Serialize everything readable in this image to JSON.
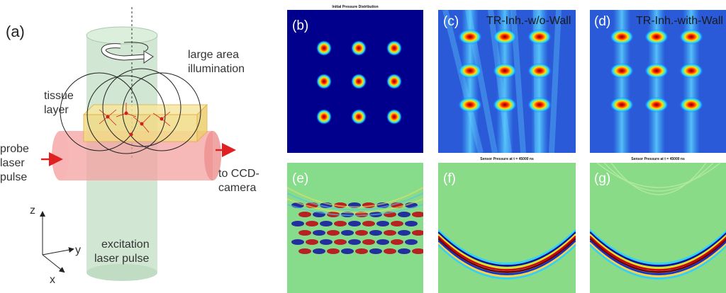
{
  "panel_a": {
    "label": "(a)",
    "rotation_label": [
      "large area",
      "illumination"
    ],
    "tissue_label": [
      "tissue",
      "layer"
    ],
    "probe_label": [
      "probe",
      "laser",
      "pulse"
    ],
    "camera_label": [
      "to CCD-",
      "camera"
    ],
    "excitation_label": [
      "excitation",
      "laser pulse"
    ],
    "axes": {
      "z": "z",
      "y": "y",
      "x": "x"
    }
  },
  "panels": [
    {
      "label": "(b)",
      "title": "Initial Pressure Distribution"
    },
    {
      "label": "(c)",
      "title": "TR-Inh.-w/o-Wall"
    },
    {
      "label": "(d)",
      "title": "TR-Inh.-with-Wall"
    },
    {
      "label": "(e)"
    },
    {
      "label": "(f)",
      "title": "Sensor Pressure at t = 45000 ns"
    },
    {
      "label": "(g)",
      "title": "Sensor Pressure at t = 45000 ns"
    }
  ]
}
